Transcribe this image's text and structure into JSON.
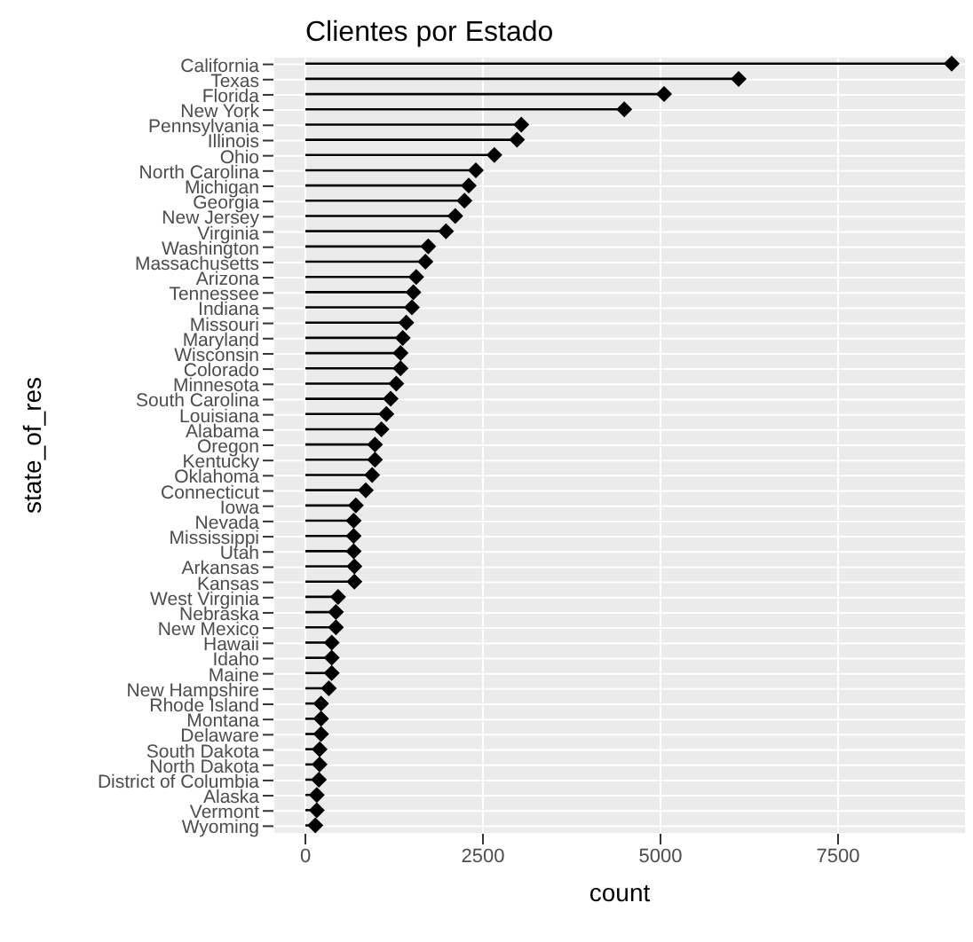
{
  "chart_data": {
    "type": "lollipop",
    "orientation": "horizontal",
    "title": "Clientes por Estado",
    "xlabel": "count",
    "ylabel": "state_of_res",
    "categories": [
      "California",
      "Texas",
      "Florida",
      "New York",
      "Pennsylvania",
      "Illinois",
      "Ohio",
      "North Carolina",
      "Michigan",
      "Georgia",
      "New Jersey",
      "Virginia",
      "Washington",
      "Massachusetts",
      "Arizona",
      "Tennessee",
      "Indiana",
      "Missouri",
      "Maryland",
      "Wisconsin",
      "Colorado",
      "Minnesota",
      "South Carolina",
      "Louisiana",
      "Alabama",
      "Oregon",
      "Kentucky",
      "Oklahoma",
      "Connecticut",
      "Iowa",
      "Nevada",
      "Mississippi",
      "Utah",
      "Arkansas",
      "Kansas",
      "West Virginia",
      "Nebraska",
      "New Mexico",
      "Hawaii",
      "Idaho",
      "Maine",
      "New Hampshire",
      "Rhode Island",
      "Montana",
      "Delaware",
      "South Dakota",
      "North Dakota",
      "District of Columbia",
      "Alaska",
      "Vermont",
      "Wyoming"
    ],
    "values": [
      9100,
      6100,
      5050,
      4490,
      3040,
      2980,
      2660,
      2400,
      2300,
      2240,
      2110,
      1980,
      1730,
      1690,
      1560,
      1520,
      1500,
      1420,
      1370,
      1340,
      1340,
      1280,
      1200,
      1140,
      1070,
      980,
      980,
      940,
      850,
      710,
      680,
      680,
      680,
      690,
      690,
      460,
      430,
      430,
      370,
      370,
      370,
      330,
      220,
      220,
      220,
      200,
      200,
      190,
      160,
      160,
      140
    ],
    "color": "#000000",
    "marker": "diamond",
    "xlim": [
      -450,
      9300
    ],
    "xticks": [
      0,
      2500,
      5000,
      7500
    ],
    "grid": true
  }
}
